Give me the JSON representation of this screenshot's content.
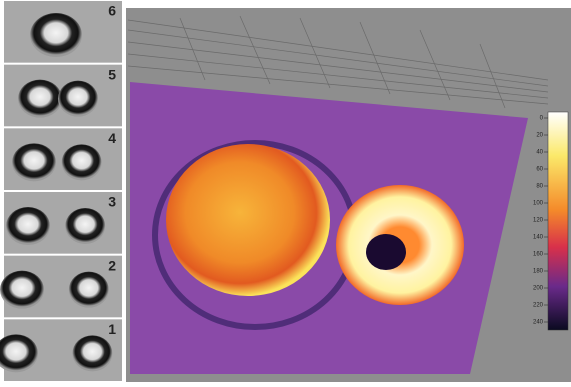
{
  "panels": {
    "labels": [
      "6",
      "5",
      "4",
      "3",
      "2",
      "1"
    ]
  },
  "colorbar": {
    "ticks": [
      0,
      20,
      40,
      60,
      80,
      100,
      120,
      140,
      160,
      180,
      200,
      220,
      240
    ]
  }
}
